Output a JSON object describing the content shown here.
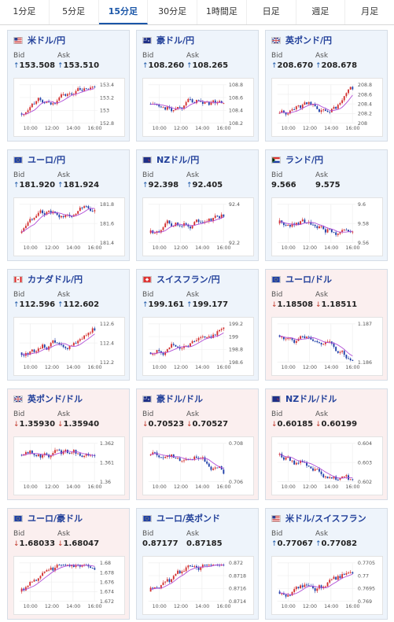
{
  "tabs": [
    {
      "label": "1分足",
      "active": false
    },
    {
      "label": "5分足",
      "active": false
    },
    {
      "label": "15分足",
      "active": true
    },
    {
      "label": "30分足",
      "active": false
    },
    {
      "label": "1時間足",
      "active": false
    },
    {
      "label": "日足",
      "active": false
    },
    {
      "label": "週足",
      "active": false
    },
    {
      "label": "月足",
      "active": false
    }
  ],
  "labels": {
    "bid": "Bid",
    "ask": "Ask"
  },
  "colors": {
    "up": "#1a56a8",
    "down": "#c0392b",
    "candle_up": "#d32f2f",
    "candle_down": "#1f3fa8",
    "ma": "#b04ad6"
  },
  "cards": [
    {
      "name": "米ドル/円",
      "flag": "us-flag",
      "dir": "up",
      "bid": "153.508",
      "ask": "153.510",
      "bid_dir": "up",
      "ask_dir": "up",
      "chart": {
        "y_ticks": [
          "153.4",
          "153.2",
          "153",
          "152.8"
        ],
        "x_ticks": [
          "10:00",
          "12:00",
          "14:00",
          "16:00"
        ],
        "trend": "up"
      }
    },
    {
      "name": "豪ドル/円",
      "flag": "au-flag",
      "dir": "up",
      "bid": "108.260",
      "ask": "108.265",
      "bid_dir": "up",
      "ask_dir": "up",
      "chart": {
        "y_ticks": [
          "108.8",
          "108.6",
          "108.4",
          "108.2"
        ],
        "x_ticks": [
          "10:00",
          "12:00",
          "14:00",
          "16:00"
        ],
        "trend": "mixed"
      }
    },
    {
      "name": "英ポンド/円",
      "flag": "uk-flag",
      "dir": "up",
      "bid": "208.670",
      "ask": "208.678",
      "bid_dir": "up",
      "ask_dir": "up",
      "chart": {
        "y_ticks": [
          "208.8",
          "208.6",
          "208.4",
          "208.2",
          "208"
        ],
        "x_ticks": [
          "10:00",
          "12:00",
          "14:00",
          "16:00"
        ],
        "trend": "up"
      }
    },
    {
      "name": "ユーロ/円",
      "flag": "eu-flag",
      "dir": "up",
      "bid": "181.920",
      "ask": "181.924",
      "bid_dir": "up",
      "ask_dir": "up",
      "chart": {
        "y_ticks": [
          "181.8",
          "181.6",
          "181.4"
        ],
        "x_ticks": [
          "10:00",
          "12:00",
          "14:00",
          "16:00"
        ],
        "trend": "up"
      }
    },
    {
      "name": "NZドル/円",
      "flag": "nz-flag",
      "dir": "up",
      "bid": "92.398",
      "ask": "92.405",
      "bid_dir": "up",
      "ask_dir": "up",
      "chart": {
        "y_ticks": [
          "92.4",
          "92.2"
        ],
        "x_ticks": [
          "10:00",
          "12:00",
          "14:00",
          "16:00"
        ],
        "trend": "up"
      }
    },
    {
      "name": "ランド/円",
      "flag": "za-flag",
      "dir": "up",
      "bid": "9.566",
      "ask": "9.575",
      "bid_dir": "",
      "ask_dir": "",
      "chart": {
        "y_ticks": [
          "9.6",
          "9.58",
          "9.56"
        ],
        "x_ticks": [
          "10:00",
          "12:00",
          "14:00",
          "16:00"
        ],
        "trend": "mixed"
      }
    },
    {
      "name": "カナダドル/円",
      "flag": "ca-flag",
      "dir": "up",
      "bid": "112.596",
      "ask": "112.602",
      "bid_dir": "up",
      "ask_dir": "up",
      "chart": {
        "y_ticks": [
          "112.6",
          "112.4",
          "112.2"
        ],
        "x_ticks": [
          "10:00",
          "12:00",
          "14:00",
          "16:00"
        ],
        "trend": "up"
      }
    },
    {
      "name": "スイスフラン/円",
      "flag": "ch-flag",
      "dir": "up",
      "bid": "199.161",
      "ask": "199.177",
      "bid_dir": "up",
      "ask_dir": "up",
      "chart": {
        "y_ticks": [
          "199.2",
          "199",
          "198.8",
          "198.6"
        ],
        "x_ticks": [
          "10:00",
          "12:00",
          "14:00",
          "16:00"
        ],
        "trend": "up"
      }
    },
    {
      "name": "ユーロ/ドル",
      "flag": "eu-us-flag",
      "dir": "down",
      "bid": "1.18508",
      "ask": "1.18511",
      "bid_dir": "down",
      "ask_dir": "down",
      "chart": {
        "y_ticks": [
          "1.187",
          "1.186"
        ],
        "x_ticks": [
          "10:00",
          "12:00",
          "14:00",
          "16:00"
        ],
        "trend": "down"
      }
    },
    {
      "name": "英ポンド/ドル",
      "flag": "uk-us-flag",
      "dir": "down",
      "bid": "1.35930",
      "ask": "1.35940",
      "bid_dir": "down",
      "ask_dir": "down",
      "chart": {
        "y_ticks": [
          "1.362",
          "1.361",
          "1.36"
        ],
        "x_ticks": [
          "10:00",
          "12:00",
          "14:00",
          "16:00"
        ],
        "trend": "down"
      }
    },
    {
      "name": "豪ドル/ドル",
      "flag": "au-us-flag",
      "dir": "down",
      "bid": "0.70523",
      "ask": "0.70527",
      "bid_dir": "down",
      "ask_dir": "down",
      "chart": {
        "y_ticks": [
          "0.708",
          "0.706"
        ],
        "x_ticks": [
          "10:00",
          "12:00",
          "14:00",
          "16:00"
        ],
        "trend": "down"
      }
    },
    {
      "name": "NZドル/ドル",
      "flag": "nz-us-flag",
      "dir": "down",
      "bid": "0.60185",
      "ask": "0.60199",
      "bid_dir": "down",
      "ask_dir": "down",
      "chart": {
        "y_ticks": [
          "0.604",
          "0.603",
          "0.602"
        ],
        "x_ticks": [
          "10:00",
          "12:00",
          "14:00",
          "16:00"
        ],
        "trend": "down"
      }
    },
    {
      "name": "ユーロ/豪ドル",
      "flag": "eu-au-flag",
      "dir": "down",
      "bid": "1.68033",
      "ask": "1.68047",
      "bid_dir": "down",
      "ask_dir": "down",
      "chart": {
        "y_ticks": [
          "1.68",
          "1.678",
          "1.676",
          "1.674",
          "1.672"
        ],
        "x_ticks": [
          "10:00",
          "12:00",
          "14:00",
          "16:00"
        ],
        "trend": "up"
      }
    },
    {
      "name": "ユーロ/英ポンド",
      "flag": "eu-uk-flag",
      "dir": "up",
      "bid": "0.87177",
      "ask": "0.87185",
      "bid_dir": "",
      "ask_dir": "",
      "chart": {
        "y_ticks": [
          "0.872",
          "0.8718",
          "0.8716",
          "0.8714"
        ],
        "x_ticks": [
          "10:00",
          "12:00",
          "14:00",
          "16:00"
        ],
        "trend": "up"
      }
    },
    {
      "name": "米ドル/スイスフラン",
      "flag": "us-ch-flag",
      "dir": "up",
      "bid": "0.77067",
      "ask": "0.77082",
      "bid_dir": "up",
      "ask_dir": "up",
      "chart": {
        "y_ticks": [
          "0.7705",
          "0.77",
          "0.7695",
          "0.769"
        ],
        "x_ticks": [
          "10:00",
          "12:00",
          "14:00",
          "16:00"
        ],
        "trend": "up"
      }
    }
  ]
}
